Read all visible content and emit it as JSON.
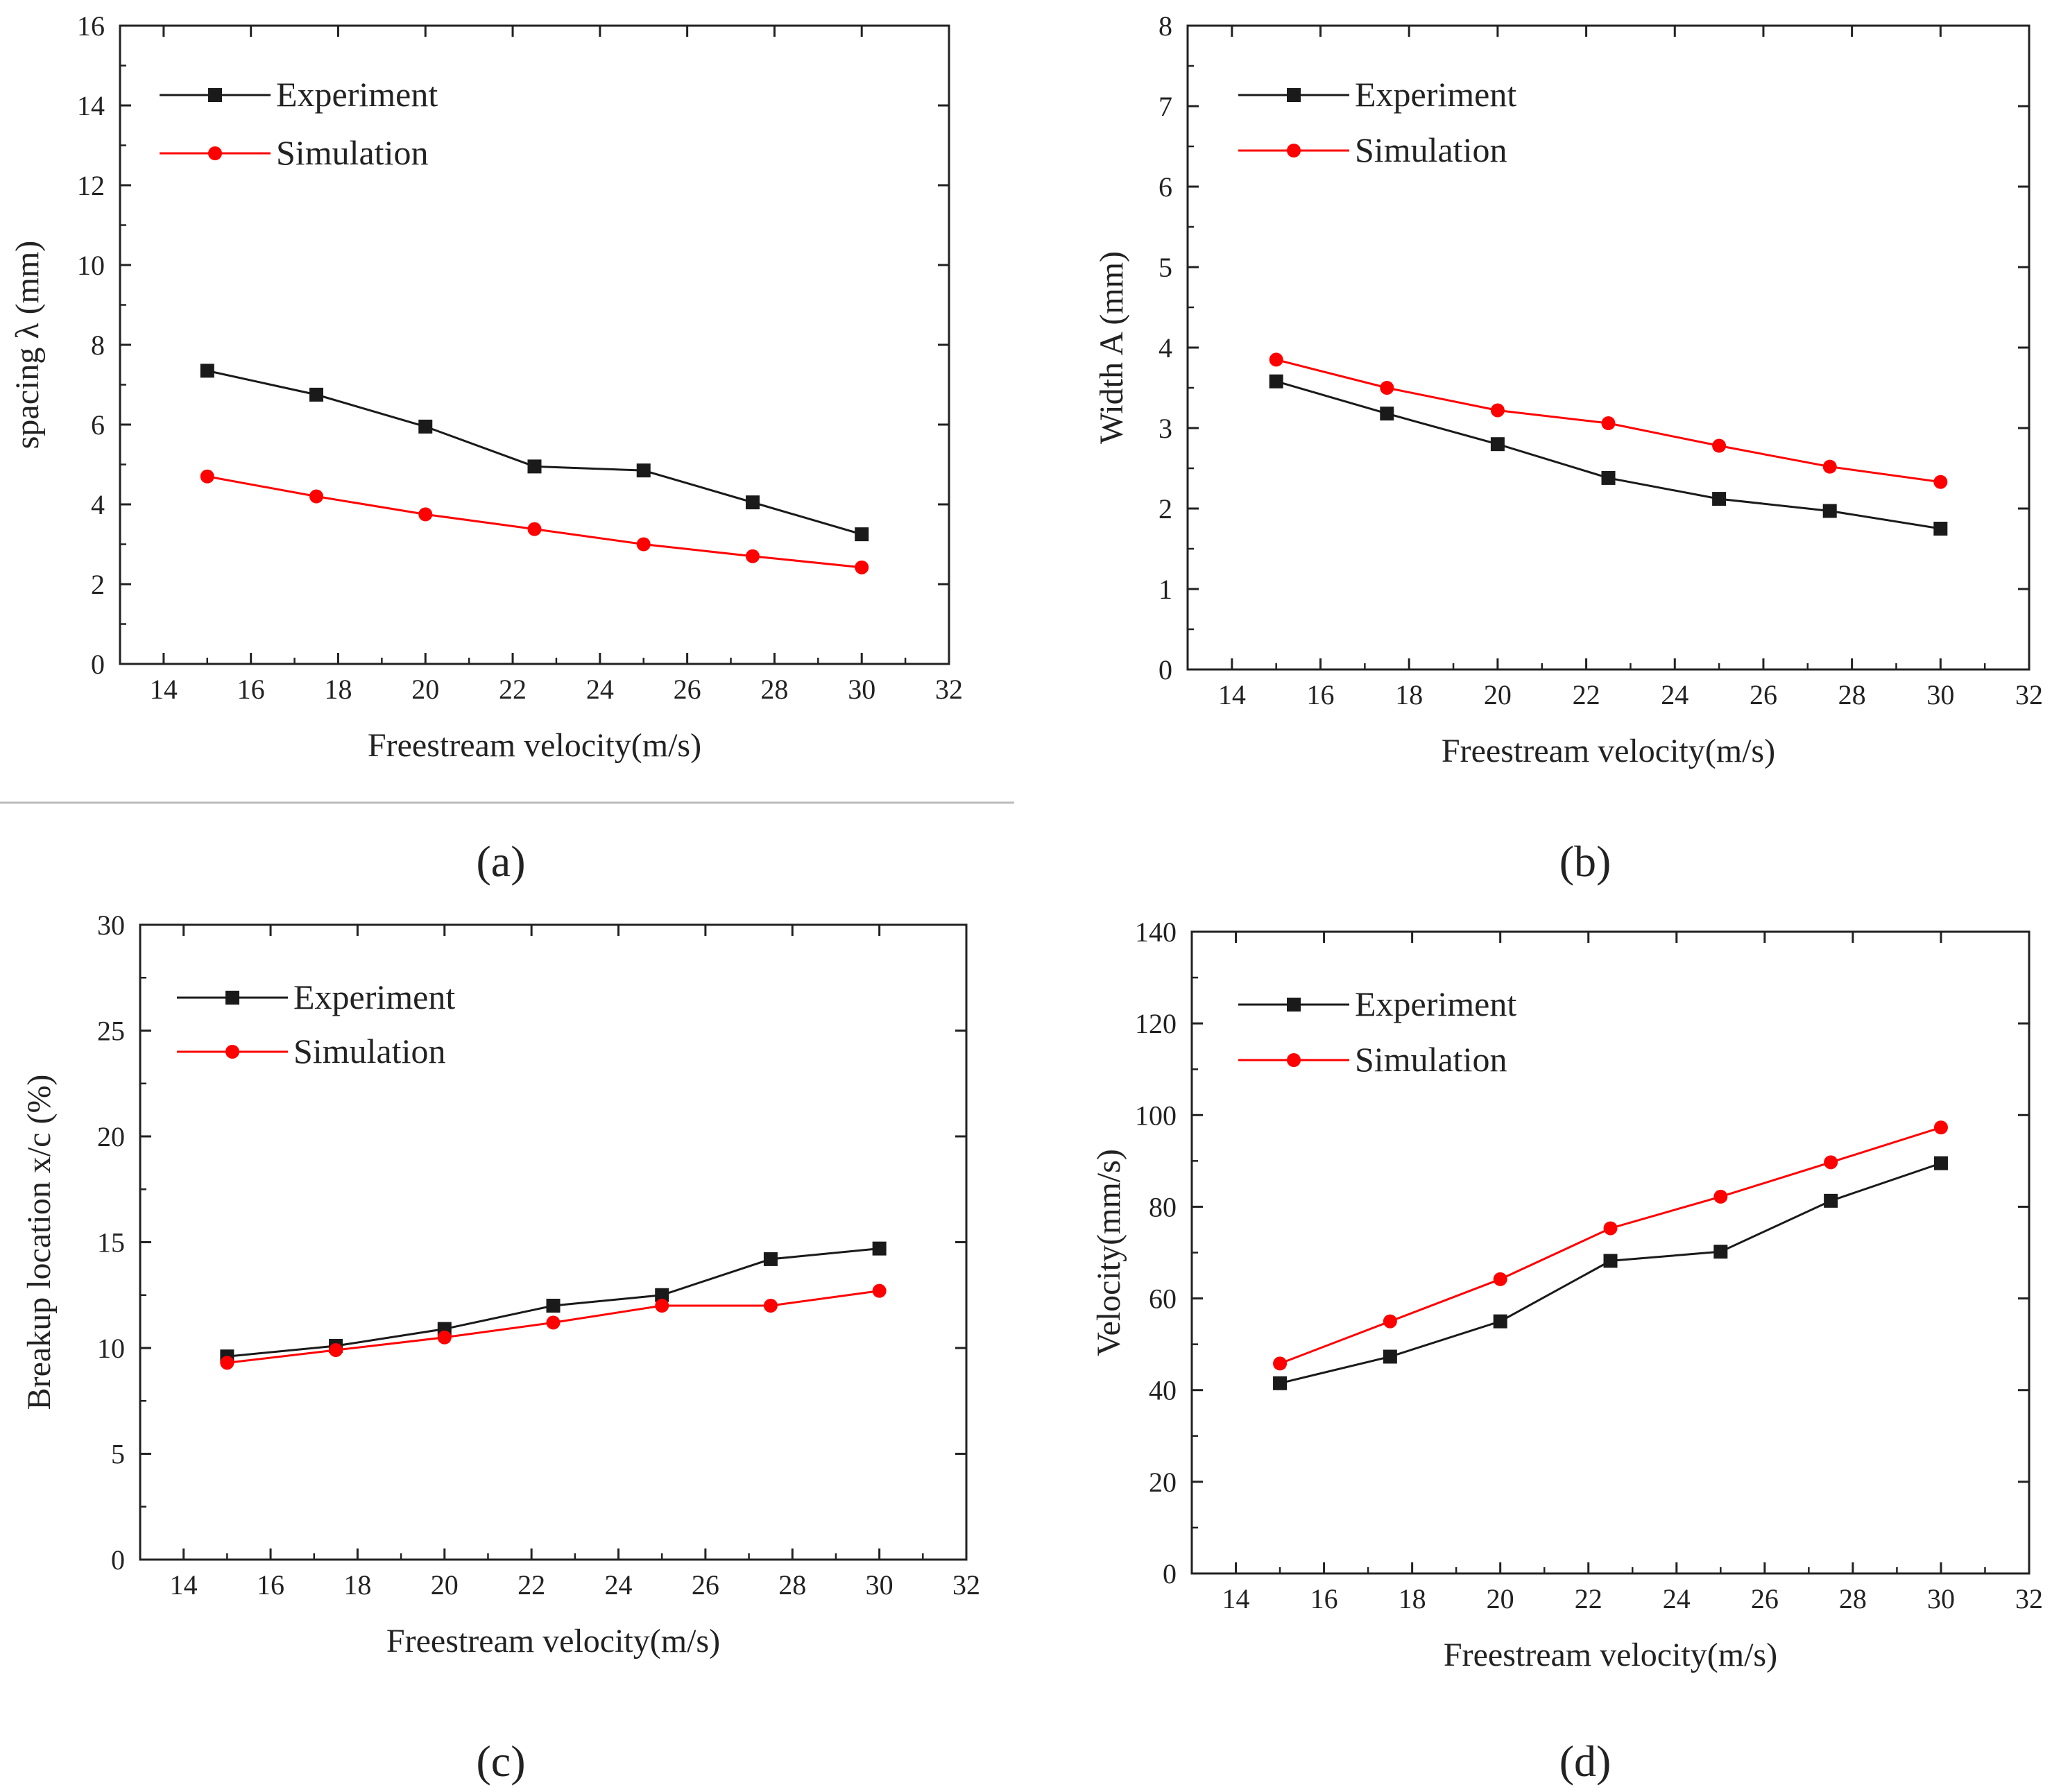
{
  "colors": {
    "experiment": "#1a1a1a",
    "simulation": "#ff0000",
    "axis": "#222222",
    "divider": "#bbbbbb"
  },
  "chart_data": [
    {
      "type": "line",
      "panel_label": "(a)",
      "xlabel": "Freestream velocity(m/s)",
      "ylabel": "spacing λ (mm)",
      "xlim": [
        13,
        32
      ],
      "ylim": [
        0,
        16
      ],
      "xticks": [
        14,
        16,
        18,
        20,
        22,
        24,
        26,
        28,
        30,
        32
      ],
      "yticks": [
        0,
        2,
        4,
        6,
        8,
        10,
        12,
        14,
        16
      ],
      "x": [
        15,
        17.5,
        20,
        22.5,
        25,
        27.5,
        30
      ],
      "legend_position": "top-left",
      "series": [
        {
          "name": "Experiment",
          "marker": "square",
          "values": [
            7.35,
            6.75,
            5.95,
            4.95,
            4.85,
            4.05,
            3.25
          ]
        },
        {
          "name": "Simulation",
          "marker": "circle",
          "values": [
            4.7,
            4.2,
            3.75,
            3.38,
            3.0,
            2.7,
            2.42
          ]
        }
      ]
    },
    {
      "type": "line",
      "panel_label": "(b)",
      "xlabel": "Freestream velocity(m/s)",
      "ylabel": "Width A (mm)",
      "xlim": [
        13,
        32
      ],
      "ylim": [
        0,
        8
      ],
      "xticks": [
        14,
        16,
        18,
        20,
        22,
        24,
        26,
        28,
        30,
        32
      ],
      "yticks": [
        0,
        1,
        2,
        3,
        4,
        5,
        6,
        7,
        8
      ],
      "x": [
        15,
        17.5,
        20,
        22.5,
        25,
        27.5,
        30
      ],
      "legend_position": "top-left",
      "series": [
        {
          "name": "Experiment",
          "marker": "square",
          "values": [
            3.58,
            3.18,
            2.8,
            2.38,
            2.12,
            1.97,
            1.75
          ]
        },
        {
          "name": "Simulation",
          "marker": "circle",
          "values": [
            3.85,
            3.5,
            3.22,
            3.06,
            2.78,
            2.52,
            2.33
          ]
        }
      ]
    },
    {
      "type": "line",
      "panel_label": "(c)",
      "xlabel": "Freestream velocity(m/s)",
      "ylabel": "Breakup location  x/c (%)",
      "xlim": [
        13,
        32
      ],
      "ylim": [
        0,
        30
      ],
      "xticks": [
        14,
        16,
        18,
        20,
        22,
        24,
        26,
        28,
        30,
        32
      ],
      "yticks": [
        0,
        5,
        10,
        15,
        20,
        25,
        30
      ],
      "x": [
        15,
        17.5,
        20,
        22.5,
        25,
        27.5,
        30
      ],
      "legend_position": "top-left",
      "series": [
        {
          "name": "Experiment",
          "marker": "square",
          "values": [
            9.6,
            10.1,
            10.9,
            12.0,
            12.5,
            14.2,
            14.7
          ]
        },
        {
          "name": "Simulation",
          "marker": "circle",
          "values": [
            9.3,
            9.9,
            10.5,
            11.2,
            12.0,
            12.0,
            12.7
          ]
        }
      ]
    },
    {
      "type": "line",
      "panel_label": "(d)",
      "xlabel": "Freestream velocity(m/s)",
      "ylabel": "Velocity(mm/s)",
      "xlim": [
        13,
        32
      ],
      "ylim": [
        0,
        140
      ],
      "xticks": [
        14,
        16,
        18,
        20,
        22,
        24,
        26,
        28,
        30,
        32
      ],
      "yticks": [
        0,
        20,
        40,
        60,
        80,
        100,
        120,
        140
      ],
      "x": [
        15,
        17.5,
        20,
        22.5,
        25,
        27.5,
        30
      ],
      "legend_position": "top-left",
      "series": [
        {
          "name": "Experiment",
          "marker": "square",
          "values": [
            41.5,
            47.3,
            55.0,
            68.2,
            70.2,
            81.3,
            89.5
          ]
        },
        {
          "name": "Simulation",
          "marker": "circle",
          "values": [
            45.8,
            55.0,
            64.2,
            75.3,
            82.2,
            89.7,
            97.3
          ]
        }
      ]
    }
  ]
}
